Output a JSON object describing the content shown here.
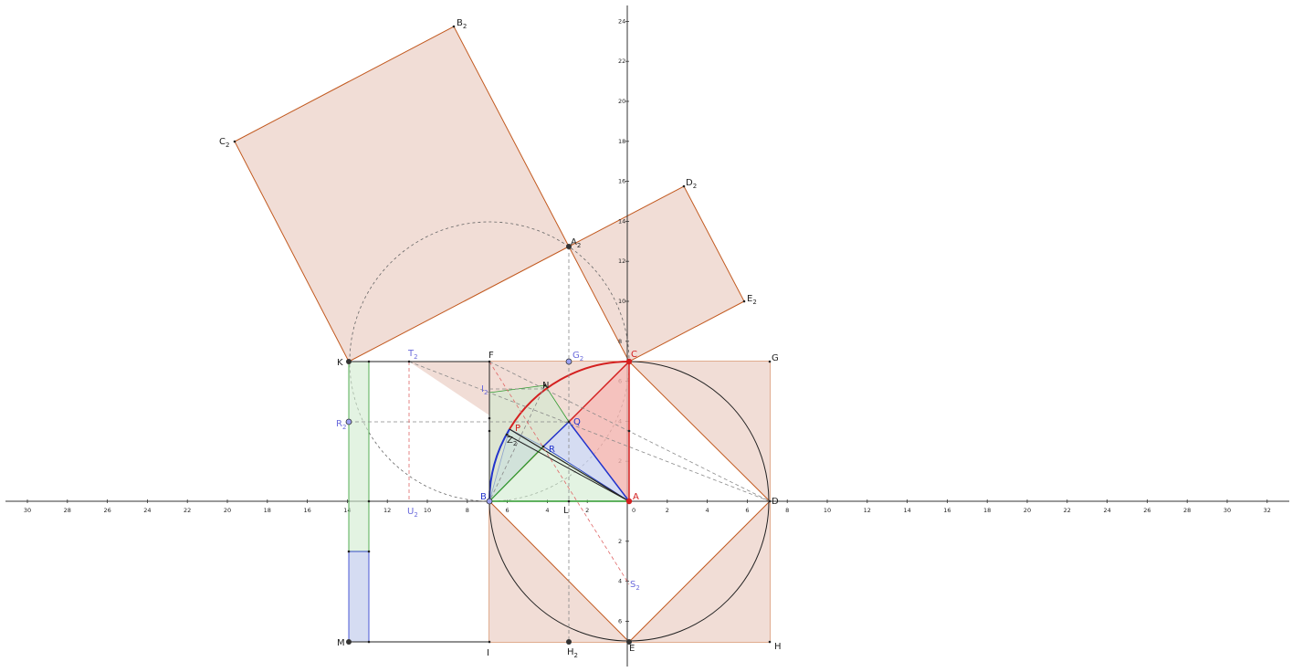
{
  "x_ticks": [
    "30",
    "28",
    "26",
    "24",
    "22",
    "20",
    "18",
    "16",
    "14",
    "12",
    "10",
    "8",
    "6",
    "4",
    "2",
    "0",
    "2",
    "4",
    "6",
    "8",
    "10",
    "12",
    "14",
    "16",
    "18",
    "20",
    "22",
    "24",
    "26",
    "28",
    "30",
    "32"
  ],
  "y_ticks_pos": [
    "2",
    "4",
    "6",
    "8",
    "10",
    "12",
    "14",
    "16",
    "18",
    "20",
    "22",
    "24"
  ],
  "y_ticks_neg": [
    "2",
    "4",
    "6"
  ],
  "colors": {
    "square_fill": "#f1ddd6",
    "square_stroke": "#c2591f",
    "red_fill": "#f2b3ae",
    "blue_fill": "#cad3ef",
    "green_fill": "#d1ebcf",
    "red": "#d42020",
    "blue": "#2233cc",
    "green": "#2f9a2f",
    "dark_point": "#333333",
    "label_blue": "#6a6adb"
  },
  "points": {
    "A": "A",
    "B": "B",
    "C": "C",
    "D": "D",
    "E": "E",
    "F": "F",
    "G": "G",
    "H": "H",
    "I": "I",
    "K": "K",
    "L": "L",
    "M": "M",
    "N": "N",
    "P": "P",
    "Q": "Q",
    "R": "R",
    "A2": "A",
    "B2": "B",
    "C2": "C",
    "D2": "D",
    "E2": "E",
    "G2": "G",
    "H2": "H",
    "I2": "I",
    "R2": "R",
    "S2": "S",
    "T2": "T",
    "U2": "U",
    "Z2": "Z",
    "sub": "2"
  }
}
